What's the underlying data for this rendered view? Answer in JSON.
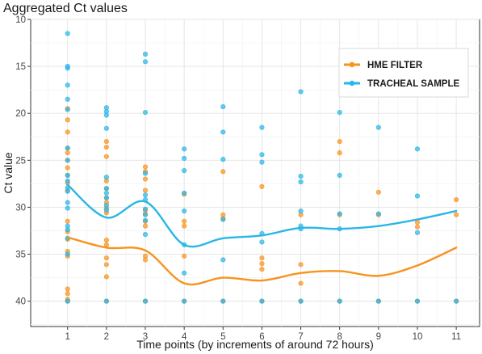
{
  "chart_data": {
    "type": "scatter",
    "title": "Aggregated Ct values",
    "xlabel": "Time points (by increments of around 72 hours)",
    "ylabel": "Ct value",
    "xlim": [
      0.05,
      11.6
    ],
    "ylim": [
      10,
      42.7
    ],
    "y_reversed": true,
    "x_ticks": [
      1,
      2,
      3,
      4,
      5,
      6,
      7,
      8,
      9,
      10,
      11
    ],
    "y_ticks": [
      10,
      15,
      20,
      25,
      30,
      35,
      40
    ],
    "grid": true,
    "legend": {
      "position": "top-right",
      "entries": [
        "HME FILTER",
        "TRACHEAL SAMPLE"
      ]
    },
    "colors": {
      "hme": "#F7931E",
      "tracheal": "#29B6E8"
    },
    "series": [
      {
        "name": "HME FILTER",
        "color": "#F7931E",
        "points": [
          [
            1,
            19.5
          ],
          [
            1,
            20.7
          ],
          [
            1,
            22.0
          ],
          [
            1,
            23.7
          ],
          [
            1,
            24.2
          ],
          [
            1,
            25.0
          ],
          [
            1,
            25.8
          ],
          [
            1,
            26.6
          ],
          [
            1,
            27.4
          ],
          [
            1,
            28.2
          ],
          [
            1,
            31.5
          ],
          [
            1,
            32.6
          ],
          [
            1,
            33.4
          ],
          [
            1,
            34.7
          ],
          [
            1,
            35.2
          ],
          [
            1,
            38.7
          ],
          [
            1,
            39.2
          ],
          [
            1,
            39.8
          ],
          [
            1,
            40.0
          ],
          [
            2,
            23.0
          ],
          [
            2,
            23.6
          ],
          [
            2,
            24.6
          ],
          [
            2,
            27.2
          ],
          [
            2,
            28.0
          ],
          [
            2,
            29.0
          ],
          [
            2,
            29.5
          ],
          [
            2,
            30.1
          ],
          [
            2,
            30.6
          ],
          [
            2,
            33.5
          ],
          [
            2,
            34.0
          ],
          [
            2,
            35.4
          ],
          [
            2,
            36.1
          ],
          [
            2,
            37.4
          ],
          [
            2,
            40.0
          ],
          [
            3,
            25.7
          ],
          [
            3,
            26.2
          ],
          [
            3,
            27.0
          ],
          [
            3,
            28.2
          ],
          [
            3,
            30.3
          ],
          [
            3,
            30.7
          ],
          [
            3,
            31.5
          ],
          [
            3,
            32.0
          ],
          [
            3,
            35.2
          ],
          [
            3,
            35.6
          ],
          [
            3,
            40.0
          ],
          [
            4,
            28.6
          ],
          [
            4,
            31.5
          ],
          [
            4,
            32.0
          ],
          [
            4,
            35.2
          ],
          [
            4,
            40.0
          ],
          [
            5,
            26.2
          ],
          [
            5,
            30.8
          ],
          [
            5,
            31.2
          ],
          [
            5,
            40.0
          ],
          [
            6,
            27.8
          ],
          [
            6,
            35.4
          ],
          [
            6,
            36.0
          ],
          [
            6,
            36.6
          ],
          [
            6,
            40.0
          ],
          [
            7,
            30.8
          ],
          [
            7,
            36.1
          ],
          [
            7,
            38.1
          ],
          [
            7,
            40.0
          ],
          [
            8,
            23.0
          ],
          [
            8,
            24.2
          ],
          [
            8,
            30.8
          ],
          [
            8,
            40.0
          ],
          [
            9,
            28.4
          ],
          [
            9,
            30.8
          ],
          [
            9,
            40.0
          ],
          [
            10,
            31.6
          ],
          [
            10,
            32.1
          ],
          [
            10,
            40.0
          ],
          [
            11,
            29.2
          ],
          [
            11,
            30.8
          ],
          [
            11,
            40.0
          ]
        ],
        "trend": [
          [
            1,
            33.2
          ],
          [
            2,
            34.3
          ],
          [
            3,
            34.6
          ],
          [
            4,
            38.1
          ],
          [
            5,
            37.5
          ],
          [
            6,
            37.8
          ],
          [
            7,
            37.0
          ],
          [
            8,
            36.8
          ],
          [
            9,
            37.3
          ],
          [
            10,
            36.2
          ],
          [
            11,
            34.3
          ]
        ]
      },
      {
        "name": "TRACHEAL SAMPLE",
        "color": "#29B6E8",
        "points": [
          [
            1,
            11.5
          ],
          [
            1,
            15.0
          ],
          [
            1,
            15.2
          ],
          [
            1,
            17.0
          ],
          [
            1,
            18.5
          ],
          [
            1,
            19.6
          ],
          [
            1,
            23.7
          ],
          [
            1,
            25.0
          ],
          [
            1,
            26.6
          ],
          [
            1,
            27.2
          ],
          [
            1,
            27.9
          ],
          [
            1,
            28.3
          ],
          [
            1,
            29.5
          ],
          [
            1,
            30.1
          ],
          [
            1,
            32.0
          ],
          [
            1,
            32.4
          ],
          [
            1,
            33.3
          ],
          [
            1,
            35.0
          ],
          [
            1,
            40.0
          ],
          [
            2,
            19.4
          ],
          [
            2,
            19.8
          ],
          [
            2,
            20.2
          ],
          [
            2,
            21.6
          ],
          [
            2,
            26.8
          ],
          [
            2,
            28.0
          ],
          [
            2,
            28.5
          ],
          [
            2,
            29.0
          ],
          [
            2,
            29.8
          ],
          [
            2,
            30.3
          ],
          [
            2,
            40.0
          ],
          [
            3,
            13.7
          ],
          [
            3,
            14.5
          ],
          [
            3,
            19.9
          ],
          [
            3,
            26.4
          ],
          [
            3,
            28.7
          ],
          [
            3,
            29.2
          ],
          [
            3,
            30.2
          ],
          [
            3,
            30.8
          ],
          [
            3,
            31.4
          ],
          [
            3,
            32.9
          ],
          [
            3,
            40.0
          ],
          [
            4,
            23.8
          ],
          [
            4,
            24.8
          ],
          [
            4,
            26.1
          ],
          [
            4,
            28.5
          ],
          [
            4,
            30.4
          ],
          [
            4,
            34.0
          ],
          [
            4,
            37.0
          ],
          [
            4,
            40.0
          ],
          [
            5,
            19.3
          ],
          [
            5,
            22.0
          ],
          [
            5,
            24.9
          ],
          [
            5,
            31.3
          ],
          [
            5,
            35.6
          ],
          [
            5,
            40.0
          ],
          [
            6,
            21.5
          ],
          [
            6,
            24.4
          ],
          [
            6,
            25.2
          ],
          [
            6,
            32.8
          ],
          [
            6,
            33.7
          ],
          [
            6,
            40.0
          ],
          [
            7,
            17.7
          ],
          [
            7,
            26.7
          ],
          [
            7,
            27.3
          ],
          [
            7,
            30.4
          ],
          [
            7,
            32.0
          ],
          [
            7,
            32.3
          ],
          [
            7,
            40.0
          ],
          [
            8,
            19.9
          ],
          [
            8,
            26.6
          ],
          [
            8,
            30.7
          ],
          [
            8,
            32.3
          ],
          [
            8,
            40.0
          ],
          [
            9,
            21.5
          ],
          [
            9,
            30.7
          ],
          [
            9,
            40.0
          ],
          [
            10,
            23.8
          ],
          [
            10,
            28.8
          ],
          [
            10,
            32.7
          ],
          [
            10,
            40.0
          ],
          [
            11,
            40.0
          ]
        ],
        "trend": [
          [
            1,
            27.6
          ],
          [
            2,
            31.1
          ],
          [
            3,
            29.4
          ],
          [
            4,
            34.0
          ],
          [
            5,
            33.3
          ],
          [
            6,
            33.0
          ],
          [
            7,
            32.2
          ],
          [
            8,
            32.3
          ],
          [
            9,
            32.0
          ],
          [
            10,
            31.3
          ],
          [
            11,
            30.4
          ]
        ]
      }
    ]
  }
}
